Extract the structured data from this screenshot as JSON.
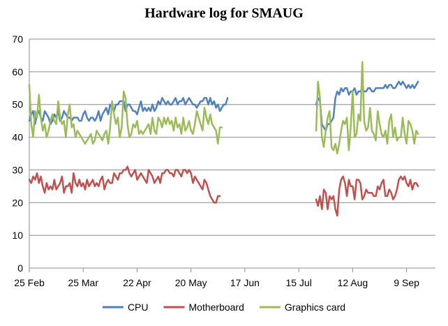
{
  "chart_data": {
    "type": "line",
    "title": "Hardware log for SMAUG",
    "xlabel": "",
    "ylabel": "",
    "ylim": [
      0,
      70
    ],
    "yticks": [
      0,
      10,
      20,
      30,
      40,
      50,
      60,
      70
    ],
    "x_ticks": [
      "25 Feb",
      "25 Mar",
      "22 Apr",
      "20 May",
      "17 Jun",
      "15 Jul",
      "12 Aug",
      "9 Sep"
    ],
    "x_range": [
      "2014-02-25",
      "2014-09-24"
    ],
    "grid": "horizontal",
    "legend": "bottom",
    "series": [
      {
        "name": "CPU",
        "color": "#4f81bd",
        "segments": [
          {
            "start": "2014-02-25",
            "values": [
              45,
              47,
              48,
              44,
              47,
              48,
              46,
              45,
              48,
              47,
              46,
              44,
              45,
              47,
              46,
              48,
              45,
              46,
              48,
              47,
              46,
              46,
              45,
              46,
              46,
              46,
              45,
              45,
              47,
              48,
              46,
              45,
              46,
              46,
              45,
              46,
              48,
              45,
              47,
              48,
              49,
              47,
              50,
              49,
              48,
              50,
              50,
              51,
              51,
              51,
              48,
              50,
              50,
              49,
              48,
              48,
              47,
              49,
              51,
              48,
              49,
              48,
              49,
              48,
              50,
              48,
              49,
              51,
              50,
              52,
              51,
              50,
              51,
              50,
              50,
              51,
              52,
              50,
              51,
              51,
              52,
              50,
              51,
              52,
              51,
              50,
              50,
              49,
              50,
              51,
              51,
              52,
              52,
              50,
              52,
              50,
              51,
              49,
              50,
              48,
              49,
              50,
              50,
              52
            ]
          },
          {
            "start": "2014-07-24",
            "values": [
              50,
              52,
              51,
              44,
              43,
              42,
              44,
              44,
              45,
              46,
              52,
              54,
              53,
              55,
              54,
              55,
              55,
              53,
              54,
              54,
              55,
              53,
              54,
              54,
              55,
              54,
              54,
              55,
              55,
              54,
              54,
              55,
              55,
              55,
              55,
              55,
              56,
              55,
              56,
              56,
              55,
              55,
              56,
              57,
              56,
              57,
              56,
              55,
              56,
              55,
              56,
              55,
              56,
              57
            ]
          }
        ]
      },
      {
        "name": "Motherboard",
        "color": "#c0504d",
        "segments": [
          {
            "start": "2014-02-25",
            "values": [
              27,
              26,
              28,
              27,
              29,
              26,
              28,
              25,
              23,
              26,
              24,
              25,
              24,
              27,
              24,
              25,
              26,
              28,
              23,
              25,
              25,
              26,
              23,
              29,
              26,
              25,
              27,
              25,
              26,
              24,
              27,
              25,
              26,
              27,
              25,
              26,
              25,
              27,
              28,
              24,
              26,
              27,
              26,
              26,
              29,
              28,
              27,
              29,
              29,
              30,
              30,
              31,
              29,
              28,
              29,
              30,
              27,
              28,
              29,
              28,
              27,
              26,
              30,
              29,
              28,
              26,
              27,
              28,
              26,
              29,
              29,
              30,
              30,
              29,
              29,
              28,
              30,
              30,
              29,
              28,
              30,
              30,
              29,
              30,
              29,
              26,
              28,
              27,
              26,
              25,
              24,
              27,
              26,
              24,
              22,
              21,
              20,
              20,
              22,
              22
            ]
          },
          {
            "start": "2014-07-24",
            "values": [
              21,
              19,
              22,
              18,
              24,
              23,
              18,
              22,
              21,
              22,
              18,
              16,
              24,
              27,
              28,
              26,
              22,
              27,
              25,
              25,
              21,
              27,
              27,
              26,
              21,
              22,
              24,
              23,
              23,
              23,
              22,
              22,
              25,
              24,
              26,
              27,
              22,
              22,
              24,
              23,
              21,
              22,
              24,
              27,
              28,
              27,
              28,
              26,
              25,
              27,
              24,
              26,
              26,
              25
            ]
          }
        ]
      },
      {
        "name": "Graphics card",
        "color": "#9bbb59",
        "segments": [
          {
            "start": "2014-02-25",
            "values": [
              56,
              44,
              40,
              48,
              46,
              53,
              46,
              42,
              44,
              40,
              42,
              45,
              47,
              45,
              44,
              51,
              46,
              44,
              45,
              40,
              47,
              50,
              43,
              44,
              40,
              42,
              41,
              40,
              39,
              38,
              39,
              40,
              41,
              38,
              39,
              42,
              41,
              40,
              39,
              41,
              42,
              38,
              43,
              51,
              47,
              44,
              46,
              40,
              43,
              54,
              52,
              44,
              40,
              41,
              44,
              43,
              45,
              41,
              42,
              41,
              42,
              43,
              44,
              41,
              46,
              42,
              41,
              46,
              45,
              43,
              46,
              44,
              46,
              44,
              45,
              42,
              46,
              43,
              44,
              41,
              46,
              42,
              43,
              45,
              42,
              41,
              44,
              48,
              46,
              44,
              42,
              49,
              46,
              44,
              47,
              44,
              43,
              42,
              38,
              43,
              43
            ]
          },
          {
            "start": "2014-07-24",
            "values": [
              42,
              57,
              52,
              40,
              37,
              42,
              46,
              48,
              37,
              36,
              38,
              35,
              38,
              42,
              45,
              44,
              46,
              36,
              43,
              54,
              40,
              41,
              47,
              45,
              63,
              45,
              42,
              43,
              49,
              42,
              41,
              39,
              48,
              44,
              41,
              40,
              42,
              38,
              45,
              47,
              40,
              43,
              39,
              40,
              40,
              46,
              41,
              38,
              45,
              44,
              42,
              38,
              42,
              41
            ]
          }
        ]
      }
    ]
  }
}
